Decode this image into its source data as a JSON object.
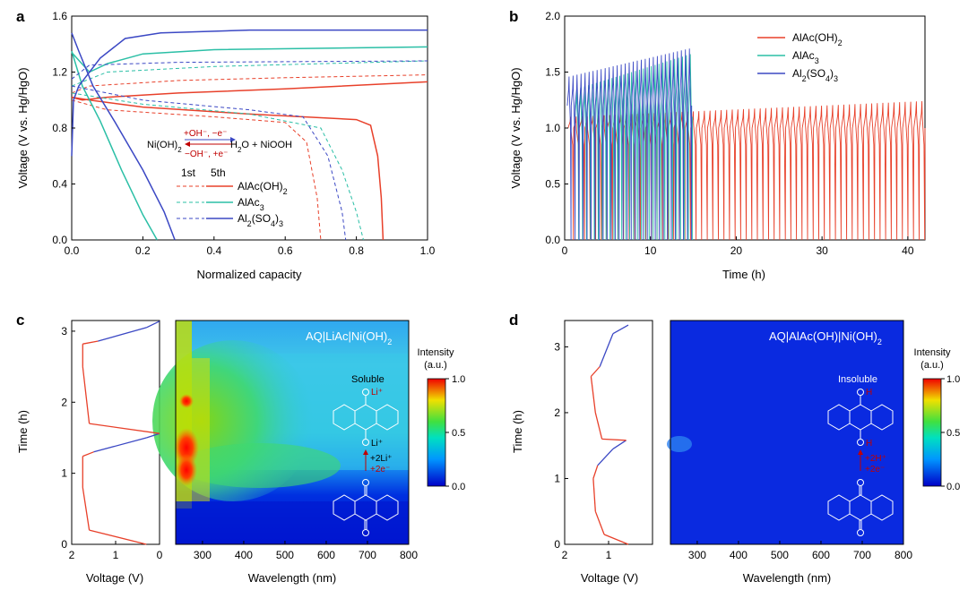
{
  "panel_labels": {
    "a": "a",
    "b": "b",
    "c": "c",
    "d": "d"
  },
  "colors": {
    "red": "#e8402a",
    "teal": "#2bbfa6",
    "blue": "#3b48c4",
    "axis": "#000000"
  },
  "chart_data": [
    {
      "panel": "a",
      "type": "line",
      "xlabel": "Normalized capacity",
      "ylabel": "Voltage (V vs. Hg/HgO)",
      "xlim": [
        0,
        1.0
      ],
      "ylim": [
        0,
        1.6
      ],
      "xticks": [
        "0.0",
        "0.2",
        "0.4",
        "0.6",
        "0.8",
        "1.0"
      ],
      "yticks": [
        "0.0",
        "0.4",
        "0.8",
        "1.2",
        "1.6"
      ],
      "legend": {
        "header_1": "1st",
        "header_2": "5th",
        "entries": [
          "AlAc(OH)",
          "AlAc",
          "Al(SO)"
        ]
      },
      "reaction": {
        "left": "Ni(OH)",
        "right": "H2O + NiOOH",
        "forward": "+OH⁻, −e⁻",
        "backward": "−OH⁻, +e⁻"
      },
      "series": [
        {
          "name": "AlAc(OH)2 5th charge",
          "color": "red",
          "dash": false,
          "points": [
            [
              0,
              1.02
            ],
            [
              0.03,
              1.0
            ],
            [
              0.1,
              1.02
            ],
            [
              0.3,
              1.05
            ],
            [
              0.6,
              1.08
            ],
            [
              1.0,
              1.13
            ]
          ]
        },
        {
          "name": "AlAc(OH)2 5th discharge",
          "color": "red",
          "dash": false,
          "points": [
            [
              0,
              1.02
            ],
            [
              0.05,
              1.0
            ],
            [
              0.2,
              0.95
            ],
            [
              0.5,
              0.9
            ],
            [
              0.8,
              0.86
            ],
            [
              0.84,
              0.82
            ],
            [
              0.86,
              0.6
            ],
            [
              0.87,
              0.3
            ],
            [
              0.875,
              0
            ]
          ]
        },
        {
          "name": "AlAc(OH)2 1st charge",
          "color": "red",
          "dash": true,
          "points": [
            [
              0,
              1.05
            ],
            [
              0.05,
              1.1
            ],
            [
              0.3,
              1.14
            ],
            [
              0.6,
              1.16
            ],
            [
              1.0,
              1.18
            ]
          ]
        },
        {
          "name": "AlAc(OH)2 1st discharge",
          "color": "red",
          "dash": true,
          "points": [
            [
              0,
              1.0
            ],
            [
              0.1,
              0.93
            ],
            [
              0.4,
              0.88
            ],
            [
              0.6,
              0.84
            ],
            [
              0.66,
              0.7
            ],
            [
              0.69,
              0.3
            ],
            [
              0.7,
              0
            ]
          ]
        },
        {
          "name": "AlAc3 5th charge",
          "color": "teal",
          "dash": false,
          "points": [
            [
              0,
              1.34
            ],
            [
              0.05,
              1.2
            ],
            [
              0.1,
              1.26
            ],
            [
              0.2,
              1.33
            ],
            [
              0.4,
              1.36
            ],
            [
              1.0,
              1.38
            ]
          ]
        },
        {
          "name": "AlAc3 5th discharge",
          "color": "teal",
          "dash": false,
          "points": [
            [
              0,
              1.35
            ],
            [
              0.03,
              1.1
            ],
            [
              0.08,
              0.85
            ],
            [
              0.14,
              0.5
            ],
            [
              0.2,
              0.18
            ],
            [
              0.24,
              0
            ]
          ]
        },
        {
          "name": "AlAc3 1st charge",
          "color": "teal",
          "dash": true,
          "points": [
            [
              0,
              1.1
            ],
            [
              0.1,
              1.2
            ],
            [
              0.4,
              1.24
            ],
            [
              1.0,
              1.28
            ]
          ]
        },
        {
          "name": "AlAc3 1st discharge",
          "color": "teal",
          "dash": true,
          "points": [
            [
              0,
              1.05
            ],
            [
              0.2,
              0.97
            ],
            [
              0.5,
              0.9
            ],
            [
              0.7,
              0.8
            ],
            [
              0.76,
              0.5
            ],
            [
              0.8,
              0.2
            ],
            [
              0.82,
              0
            ]
          ]
        },
        {
          "name": "Al2(SO4)3 5th charge",
          "color": "blue",
          "dash": false,
          "points": [
            [
              0,
              0.6
            ],
            [
              0.005,
              1.0
            ],
            [
              0.02,
              1.1
            ],
            [
              0.08,
              1.3
            ],
            [
              0.15,
              1.44
            ],
            [
              0.25,
              1.48
            ],
            [
              0.5,
              1.5
            ],
            [
              1.0,
              1.5
            ]
          ]
        },
        {
          "name": "Al2(SO4)3 5th discharge",
          "color": "blue",
          "dash": false,
          "points": [
            [
              0,
              1.48
            ],
            [
              0.02,
              1.35
            ],
            [
              0.06,
              1.1
            ],
            [
              0.12,
              0.85
            ],
            [
              0.2,
              0.5
            ],
            [
              0.26,
              0.2
            ],
            [
              0.29,
              0
            ]
          ]
        },
        {
          "name": "Al2(SO4)3 1st charge",
          "color": "blue",
          "dash": true,
          "points": [
            [
              0,
              1.15
            ],
            [
              0.05,
              1.25
            ],
            [
              0.3,
              1.27
            ],
            [
              1.0,
              1.28
            ]
          ]
        },
        {
          "name": "Al2(SO4)3 1st discharge",
          "color": "blue",
          "dash": true,
          "points": [
            [
              0,
              1.1
            ],
            [
              0.2,
              1.0
            ],
            [
              0.5,
              0.93
            ],
            [
              0.65,
              0.88
            ],
            [
              0.72,
              0.6
            ],
            [
              0.76,
              0.2
            ],
            [
              0.77,
              0
            ]
          ]
        }
      ]
    },
    {
      "panel": "b",
      "type": "line",
      "xlabel": "Time (h)",
      "ylabel": "Voltage (V vs. Hg/HgO)",
      "xlim": [
        0,
        42
      ],
      "ylim": [
        0,
        2.0
      ],
      "xticks": [
        "0",
        "10",
        "20",
        "30",
        "40"
      ],
      "yticks": [
        "0.0",
        "0.5",
        "1.0",
        "1.5",
        "2.0"
      ],
      "legend": {
        "entries": [
          "AlAc(OH)",
          "AlAc",
          "Al(SO)"
        ]
      },
      "series": [
        {
          "name": "AlAc(OH)2",
          "color": "red",
          "t_start": 0.4,
          "t_end": 42,
          "cycles": 64,
          "v_low": 0.0,
          "v_high_start": 1.1,
          "v_high_end": 1.24,
          "v_flat": 1.0
        },
        {
          "name": "AlAc3",
          "color": "teal",
          "t_start": 1.2,
          "t_end": 14.9,
          "cycles": 30,
          "v_low": 0.0,
          "v_high_start": 1.35,
          "v_high_end": 1.66,
          "v_flat": 1.1
        },
        {
          "name": "Al2(SO4)3",
          "color": "blue",
          "t_start": 0.3,
          "t_end": 14.8,
          "cycles": 31,
          "v_low": 0.0,
          "v_high_start": 1.46,
          "v_high_end": 1.71,
          "v_flat": 1.2
        }
      ]
    },
    {
      "panel": "c",
      "type": "heatmap",
      "title": "AQ|LiAc|Ni(OH)",
      "xlabel": "Wavelength (nm)",
      "ylabel": "Time (h)",
      "xlim": [
        235,
        800
      ],
      "ylim": [
        0,
        3.15
      ],
      "xticks": [
        "300",
        "400",
        "500",
        "600",
        "700",
        "800"
      ],
      "yticks": [
        "0",
        "1",
        "2",
        "3"
      ],
      "colorbar": {
        "title": "Intensity",
        "unit": "(a.u.)",
        "ticks": [
          "1.0",
          "0.5",
          "0.0"
        ]
      },
      "voltage_axis": {
        "xlabel": "Voltage (V)",
        "xticks": [
          "2",
          "1",
          "0"
        ]
      },
      "voltage_trace": [
        [
          0.3,
          0
        ],
        [
          1.6,
          0.2
        ],
        [
          1.75,
          0.8
        ],
        [
          1.75,
          1.24
        ],
        [
          1.5,
          1.3
        ],
        [
          0.3,
          1.5
        ],
        [
          0.0,
          1.56
        ],
        [
          1.6,
          1.7
        ],
        [
          1.75,
          2.5
        ],
        [
          1.75,
          2.82
        ],
        [
          1.4,
          2.86
        ],
        [
          0.3,
          3.05
        ],
        [
          0.0,
          3.14
        ]
      ],
      "annotations": {
        "state": "Soluble",
        "step_ion": "+2Li⁺",
        "step_e": "+2e⁻",
        "cation": "Li⁺"
      }
    },
    {
      "panel": "d",
      "type": "heatmap",
      "title": "AQ|AlAc(OH)|Ni(OH)",
      "xlabel": "Wavelength (nm)",
      "ylabel": "Time (h)",
      "xlim": [
        235,
        800
      ],
      "ylim": [
        0,
        3.4
      ],
      "xticks": [
        "300",
        "400",
        "500",
        "600",
        "700",
        "800"
      ],
      "yticks": [
        "0",
        "1",
        "2",
        "3"
      ],
      "colorbar": {
        "title": "Intensity",
        "unit": "(a.u.)",
        "ticks": [
          "1.0",
          "0.5",
          "0.0"
        ]
      },
      "voltage_axis": {
        "xlabel": "Voltage (V)",
        "xticks": [
          "2",
          "1"
        ]
      },
      "voltage_trace": [
        [
          0.55,
          0
        ],
        [
          1.1,
          0.15
        ],
        [
          1.3,
          0.5
        ],
        [
          1.35,
          1.0
        ],
        [
          1.25,
          1.2
        ],
        [
          0.9,
          1.45
        ],
        [
          0.6,
          1.58
        ],
        [
          1.15,
          1.6
        ],
        [
          1.3,
          2.0
        ],
        [
          1.4,
          2.55
        ],
        [
          1.2,
          2.7
        ],
        [
          0.9,
          3.2
        ],
        [
          0.55,
          3.33
        ]
      ],
      "annotations": {
        "state": "Insoluble",
        "step_ion": "+2H⁺",
        "step_e": "+2e⁻",
        "cation": "H"
      }
    }
  ]
}
